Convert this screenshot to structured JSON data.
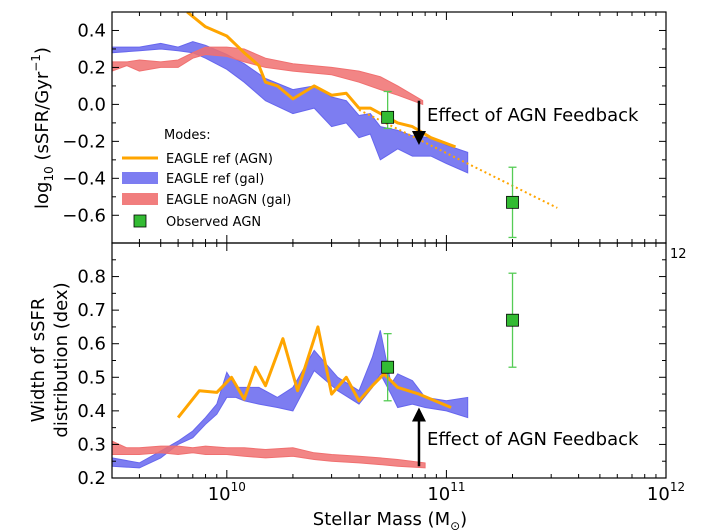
{
  "chart_data": [
    {
      "panel": "top",
      "type": "line",
      "ylabel_parts": [
        "log",
        "10",
        " (sSFR/Gyr",
        "−1",
        ")"
      ],
      "xscale": "log",
      "xlim": [
        3000000000,
        1000000000000
      ],
      "ylim": [
        -0.75,
        0.5
      ],
      "yticks": [
        -0.6,
        -0.4,
        -0.2,
        0.0,
        0.2,
        0.4
      ],
      "ytick_labels": [
        "−0.6",
        "−0.4",
        "−0.2",
        "0.0",
        "0.2",
        "0.4"
      ],
      "legend": {
        "title": "Modes:",
        "position": "lower-left",
        "entries": [
          "EAGLE ref (AGN)",
          "EAGLE ref (gal)",
          "EAGLE noAGN (gal)",
          "Observed AGN"
        ]
      },
      "annotation": {
        "text": "Effect of AGN Feedback",
        "arrow_x": 75000000000,
        "arrow_from": 0.02,
        "arrow_to": -0.22
      },
      "series": [
        {
          "name": "EAGLE ref (AGN)",
          "kind": "line",
          "color": "#ffa500",
          "x": [
            6600000000,
            8000000000,
            10000000000,
            12000000000,
            14000000000,
            15000000000,
            17000000000,
            20000000000,
            25000000000,
            30000000000,
            35000000000,
            40000000000,
            45000000000,
            52000000000,
            60000000000,
            70000000000,
            85000000000,
            110000000000
          ],
          "y": [
            0.5,
            0.42,
            0.37,
            0.28,
            0.21,
            0.12,
            0.1,
            0.03,
            0.1,
            0.05,
            0.06,
            -0.02,
            -0.02,
            -0.06,
            -0.1,
            -0.12,
            -0.18,
            -0.23
          ]
        },
        {
          "name": "EAGLE ref (AGN) extrapolation",
          "kind": "dotted",
          "color": "#ffa500",
          "x": [
            40000000000,
            320000000000
          ],
          "y": [
            -0.03,
            -0.56
          ]
        },
        {
          "name": "EAGLE ref (gal)",
          "kind": "band",
          "color": "#6666ee",
          "x": [
            3000000000,
            4000000000,
            5000000000,
            6000000000,
            7000000000,
            8000000000,
            10000000000,
            12000000000,
            15000000000,
            20000000000,
            25000000000,
            30000000000,
            35000000000,
            40000000000,
            45000000000,
            50000000000,
            60000000000,
            70000000000,
            85000000000,
            100000000000,
            125000000000
          ],
          "lower": [
            0.28,
            0.29,
            0.3,
            0.29,
            0.28,
            0.25,
            0.19,
            0.12,
            0.02,
            -0.05,
            -0.02,
            -0.12,
            -0.1,
            -0.18,
            -0.16,
            -0.3,
            -0.24,
            -0.28,
            -0.28,
            -0.32,
            -0.37
          ],
          "upper": [
            0.31,
            0.31,
            0.33,
            0.31,
            0.34,
            0.32,
            0.27,
            0.22,
            0.14,
            0.08,
            0.1,
            0.04,
            0.02,
            -0.06,
            -0.05,
            -0.12,
            -0.14,
            -0.17,
            -0.18,
            -0.22,
            -0.26
          ]
        },
        {
          "name": "EAGLE noAGN (gal)",
          "kind": "band",
          "color": "#f07070",
          "x": [
            3000000000,
            3500000000,
            4000000000,
            5000000000,
            6000000000,
            7000000000,
            8000000000,
            10000000000,
            12000000000,
            15000000000,
            20000000000,
            30000000000,
            40000000000,
            50000000000,
            60000000000,
            78000000000
          ],
          "lower": [
            0.18,
            0.21,
            0.18,
            0.2,
            0.2,
            0.25,
            0.27,
            0.26,
            0.23,
            0.2,
            0.18,
            0.16,
            0.12,
            0.08,
            0.05,
            0.0
          ],
          "upper": [
            0.23,
            0.23,
            0.24,
            0.23,
            0.24,
            0.28,
            0.31,
            0.31,
            0.3,
            0.25,
            0.22,
            0.2,
            0.18,
            0.15,
            0.1,
            0.02
          ]
        },
        {
          "name": "Observed AGN",
          "kind": "points",
          "color": "#33bb33",
          "x": [
            54000000000,
            200000000000
          ],
          "y": [
            -0.07,
            -0.53
          ],
          "yerr_low": [
            -0.13,
            -0.72
          ],
          "yerr_high": [
            0.07,
            -0.34
          ]
        }
      ]
    },
    {
      "panel": "bottom",
      "type": "line",
      "ylabel_lines": [
        "Width of sSFR",
        "distribution (dex)"
      ],
      "xlabel_parts": [
        "Stellar Mass (M",
        "⊙",
        ")"
      ],
      "xscale": "log",
      "xlim": [
        3000000000,
        1000000000000
      ],
      "ylim": [
        0.2,
        0.9
      ],
      "yticks": [
        0.2,
        0.3,
        0.4,
        0.5,
        0.6,
        0.7,
        0.8
      ],
      "ytick_labels": [
        "0.2",
        "0.3",
        "0.4",
        "0.5",
        "0.6",
        "0.7",
        "0.8"
      ],
      "xticks": [
        10000000000,
        100000000000,
        1000000000000
      ],
      "xtick_mantissa": "10",
      "xtick_exponents": [
        "10",
        "11",
        "12"
      ],
      "corner_label": "12",
      "annotation": {
        "text": "Effect of AGN Feedback",
        "arrow_x": 75000000000,
        "arrow_from": 0.235,
        "arrow_to": 0.41
      },
      "series": [
        {
          "name": "EAGLE ref (AGN)",
          "kind": "line",
          "color": "#ffa500",
          "x": [
            6000000000,
            7500000000,
            9000000000,
            10500000000,
            12000000000,
            13500000000,
            15000000000,
            18000000000,
            21000000000,
            26000000000,
            30000000000,
            35000000000,
            40000000000,
            46000000000,
            52000000000,
            60000000000,
            75000000000,
            105000000000
          ],
          "y": [
            0.38,
            0.46,
            0.455,
            0.5,
            0.435,
            0.53,
            0.475,
            0.615,
            0.46,
            0.65,
            0.45,
            0.5,
            0.43,
            0.475,
            0.51,
            0.47,
            0.45,
            0.41
          ]
        },
        {
          "name": "EAGLE ref (gal)",
          "kind": "band",
          "color": "#6666ee",
          "x": [
            3000000000,
            4000000000,
            5000000000,
            6000000000,
            7000000000,
            8000000000,
            9000000000,
            10000000000,
            11000000000,
            12000000000,
            14000000000,
            17000000000,
            20000000000,
            25000000000,
            32000000000,
            40000000000,
            46000000000,
            50000000000,
            56000000000,
            60000000000,
            70000000000,
            80000000000,
            100000000000,
            125000000000
          ],
          "lower": [
            0.235,
            0.23,
            0.26,
            0.3,
            0.32,
            0.36,
            0.39,
            0.44,
            0.44,
            0.43,
            0.42,
            0.41,
            0.4,
            0.52,
            0.46,
            0.42,
            0.47,
            0.51,
            0.45,
            0.41,
            0.42,
            0.41,
            0.4,
            0.38
          ],
          "upper": [
            0.26,
            0.245,
            0.28,
            0.31,
            0.34,
            0.38,
            0.42,
            0.515,
            0.47,
            0.47,
            0.47,
            0.44,
            0.47,
            0.58,
            0.5,
            0.46,
            0.56,
            0.64,
            0.48,
            0.51,
            0.49,
            0.44,
            0.43,
            0.44
          ]
        },
        {
          "name": "EAGLE noAGN (gal)",
          "kind": "band",
          "color": "#f07070",
          "x": [
            3000000000,
            3500000000,
            4000000000,
            5000000000,
            6000000000,
            7000000000,
            8000000000,
            10000000000,
            12000000000,
            15000000000,
            20000000000,
            25000000000,
            30000000000,
            40000000000,
            50000000000,
            60000000000,
            80000000000
          ],
          "lower": [
            0.27,
            0.27,
            0.27,
            0.275,
            0.27,
            0.275,
            0.27,
            0.27,
            0.265,
            0.26,
            0.265,
            0.255,
            0.25,
            0.245,
            0.24,
            0.235,
            0.23
          ],
          "upper": [
            0.31,
            0.29,
            0.29,
            0.295,
            0.295,
            0.29,
            0.295,
            0.29,
            0.29,
            0.285,
            0.29,
            0.275,
            0.27,
            0.265,
            0.26,
            0.255,
            0.245
          ]
        },
        {
          "name": "Observed AGN",
          "kind": "points",
          "color": "#33bb33",
          "x": [
            54000000000,
            200000000000
          ],
          "y": [
            0.53,
            0.67
          ],
          "yerr_low": [
            0.43,
            0.53
          ],
          "yerr_high": [
            0.63,
            0.81
          ]
        }
      ]
    }
  ]
}
